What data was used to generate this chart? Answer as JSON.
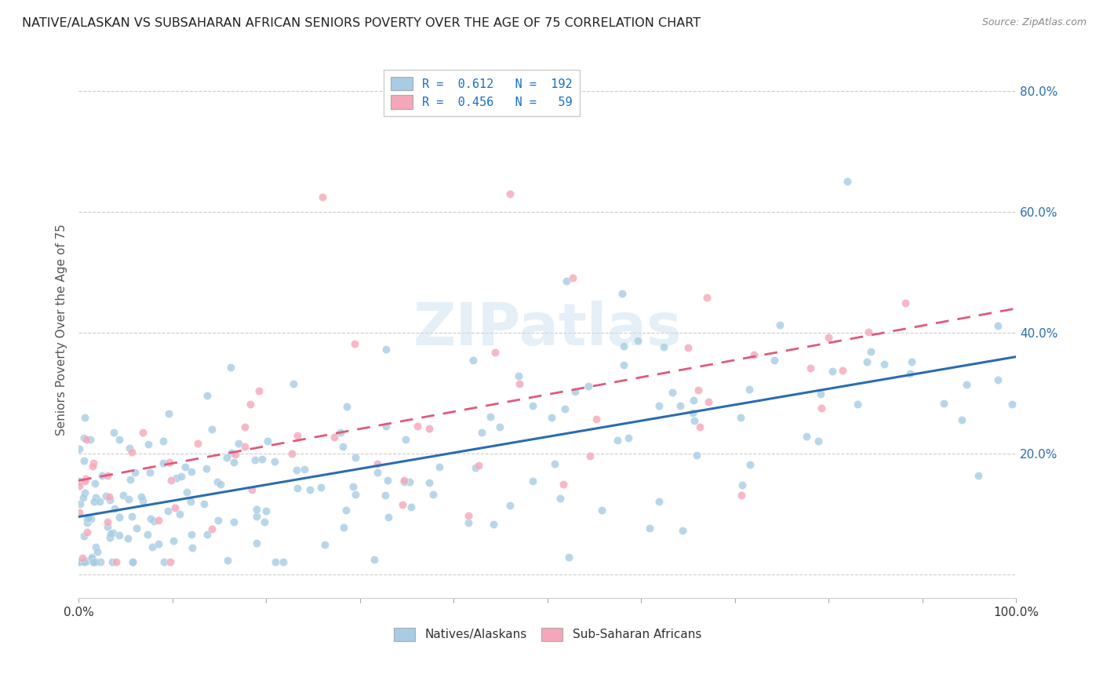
{
  "title": "NATIVE/ALASKAN VS SUBSAHARAN AFRICAN SENIORS POVERTY OVER THE AGE OF 75 CORRELATION CHART",
  "source": "Source: ZipAtlas.com",
  "ylabel": "Seniors Poverty Over the Age of 75",
  "watermark": "ZIPatlas",
  "color_blue": "#a8cce4",
  "color_pink": "#f4a7b9",
  "line_blue": "#2b6cb0",
  "line_pink": "#e05a7a",
  "background": "#ffffff",
  "grid_color": "#cccccc",
  "blue_R": 0.612,
  "blue_N": 192,
  "pink_R": 0.456,
  "pink_N": 59,
  "xlim": [
    0,
    1.0
  ],
  "ylim": [
    -0.04,
    0.85
  ],
  "blue_intercept": 0.095,
  "blue_slope": 0.265,
  "pink_intercept": 0.155,
  "pink_slope": 0.285
}
